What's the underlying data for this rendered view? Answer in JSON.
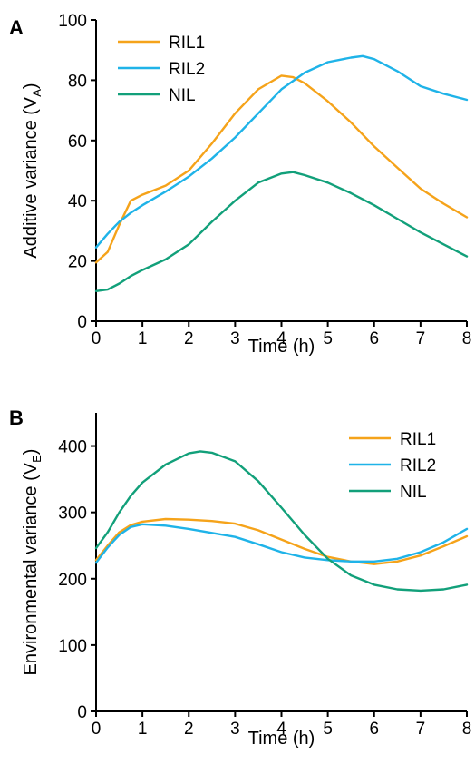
{
  "chart_data": [
    {
      "panel_label": "A",
      "type": "line",
      "xlabel": "Time (h)",
      "ylabel_main": "Additive variance (V",
      "ylabel_sub": "A",
      "ylabel_close": ")",
      "xlim": [
        0,
        8
      ],
      "ylim": [
        0,
        100
      ],
      "xticks": [
        0,
        1,
        2,
        3,
        4,
        5,
        6,
        7,
        8
      ],
      "yticks": [
        0,
        20,
        40,
        60,
        80,
        100
      ],
      "grid": false,
      "legend_position": "top-left",
      "series": [
        {
          "name": "RIL1",
          "color": "#f5a31a",
          "x": [
            0,
            0.25,
            0.5,
            0.75,
            1,
            1.5,
            2,
            2.5,
            3,
            3.5,
            4,
            4.25,
            4.5,
            5,
            5.5,
            6,
            6.5,
            7,
            7.5,
            8
          ],
          "y": [
            19.5,
            23,
            32,
            40,
            42,
            45,
            50,
            59,
            69,
            77,
            81.5,
            81,
            79,
            73,
            66,
            58,
            51,
            44,
            39,
            34.5
          ]
        },
        {
          "name": "RIL2",
          "color": "#1fb3e8",
          "x": [
            0,
            0.25,
            0.5,
            0.75,
            1,
            1.5,
            2,
            2.5,
            3,
            3.5,
            4,
            4.5,
            5,
            5.5,
            5.75,
            6,
            6.5,
            7,
            7.5,
            8
          ],
          "y": [
            24.5,
            29,
            33,
            36,
            38.5,
            43,
            48,
            54,
            61,
            69,
            77,
            82.5,
            86,
            87.5,
            88,
            87,
            83,
            78,
            75.5,
            73.5
          ]
        },
        {
          "name": "NIL",
          "color": "#12a07a",
          "x": [
            0,
            0.25,
            0.5,
            0.75,
            1,
            1.5,
            2,
            2.5,
            3,
            3.5,
            4,
            4.25,
            4.5,
            5,
            5.5,
            6,
            6.5,
            7,
            7.5,
            8
          ],
          "y": [
            10,
            10.5,
            12.5,
            15,
            17,
            20.5,
            25.5,
            33,
            40,
            46,
            49,
            49.5,
            48.5,
            46,
            42.5,
            38.5,
            34,
            29.5,
            25.5,
            21.5
          ]
        }
      ]
    },
    {
      "panel_label": "B",
      "type": "line",
      "xlabel": "Time (h)",
      "ylabel_main": "Environmental variance (V",
      "ylabel_sub": "E",
      "ylabel_close": ")",
      "xlim": [
        0,
        8
      ],
      "ylim": [
        0,
        450
      ],
      "xticks": [
        0,
        1,
        2,
        3,
        4,
        5,
        6,
        7,
        8
      ],
      "yticks": [
        0,
        100,
        200,
        300,
        400
      ],
      "grid": false,
      "legend_position": "top-right",
      "series": [
        {
          "name": "RIL1",
          "color": "#f5a31a",
          "x": [
            0,
            0.25,
            0.5,
            0.75,
            1,
            1.5,
            2,
            2.5,
            3,
            3.5,
            4,
            4.5,
            5,
            5.5,
            6,
            6.5,
            7,
            7.5,
            8
          ],
          "y": [
            228,
            250,
            270,
            281,
            286,
            290,
            289,
            287,
            283,
            273,
            259,
            245,
            233,
            226,
            222,
            226,
            235,
            249,
            264
          ]
        },
        {
          "name": "RIL2",
          "color": "#1fb3e8",
          "x": [
            0,
            0.25,
            0.5,
            0.75,
            1,
            1.5,
            2,
            2.5,
            3,
            3.5,
            4,
            4.5,
            5,
            5.5,
            6,
            6.5,
            7,
            7.5,
            8
          ],
          "y": [
            224,
            247,
            266,
            278,
            282,
            280,
            275,
            269,
            263,
            252,
            240,
            232,
            228,
            226,
            226,
            230,
            240,
            255,
            275
          ]
        },
        {
          "name": "NIL",
          "color": "#12a07a",
          "x": [
            0,
            0.25,
            0.5,
            0.75,
            1,
            1.5,
            2,
            2.25,
            2.5,
            3,
            3.5,
            4,
            4.5,
            5,
            5.5,
            6,
            6.5,
            7,
            7.5,
            8
          ],
          "y": [
            246,
            270,
            300,
            325,
            345,
            372,
            389,
            392,
            390,
            377,
            347,
            307,
            266,
            230,
            205,
            191,
            184,
            182,
            184,
            191
          ]
        }
      ]
    }
  ]
}
